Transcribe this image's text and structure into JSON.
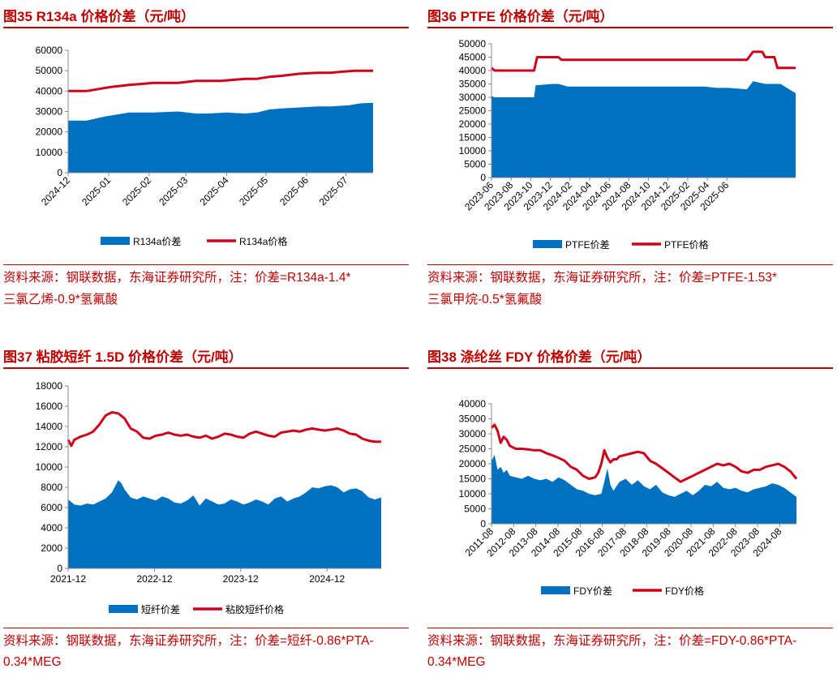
{
  "colors": {
    "title": "#c00000",
    "area": "#0070c0",
    "line": "#d0021b"
  },
  "panels": [
    {
      "title": "图35 R134a 价格价差（元/吨）",
      "source_line1": "资料来源：钢联数据，东海证券研究所，注：价差=R134a-1.4*",
      "source_line2": "三氯乙烯-0.9*氢氟酸",
      "chart_data": {
        "type": "area+line",
        "ylim": [
          0,
          60000
        ],
        "yticks": [
          0,
          10000,
          20000,
          30000,
          40000,
          50000,
          60000
        ],
        "xlim": [
          0,
          1
        ],
        "xticks": [
          {
            "label": "2024-12",
            "pos": 0
          },
          {
            "label": "2025-01",
            "pos": 0.133
          },
          {
            "label": "2025-02",
            "pos": 0.266
          },
          {
            "label": "2025-03",
            "pos": 0.386
          },
          {
            "label": "2025-04",
            "pos": 0.52
          },
          {
            "label": "2025-05",
            "pos": 0.649
          },
          {
            "label": "2025-06",
            "pos": 0.782
          },
          {
            "label": "2025-07",
            "pos": 0.911
          }
        ],
        "series": [
          {
            "name": "R134a价差",
            "kind": "area",
            "x": [
              0,
              0.06,
              0.12,
              0.2,
              0.28,
              0.36,
              0.42,
              0.46,
              0.52,
              0.58,
              0.62,
              0.66,
              0.7,
              0.76,
              0.82,
              0.86,
              0.92,
              0.96,
              1
            ],
            "y": [
              25500,
              25500,
              27500,
              29500,
              29500,
              30000,
              29000,
              29000,
              29500,
              29000,
              29500,
              31000,
              31500,
              32000,
              32500,
              32500,
              33000,
              34000,
              34200
            ]
          },
          {
            "name": "R134a价格",
            "kind": "line",
            "x": [
              0,
              0.06,
              0.1,
              0.14,
              0.2,
              0.28,
              0.32,
              0.36,
              0.42,
              0.46,
              0.5,
              0.58,
              0.62,
              0.66,
              0.7,
              0.76,
              0.82,
              0.86,
              0.9,
              0.94,
              1
            ],
            "y": [
              40000,
              40000,
              41000,
              42000,
              43000,
              44000,
              44000,
              44000,
              45000,
              45000,
              45000,
              46000,
              46000,
              47000,
              47500,
              48500,
              49000,
              49000,
              49500,
              50000,
              50000
            ]
          }
        ],
        "legend": [
          "R134a价差",
          "R134a价格"
        ]
      }
    },
    {
      "title": "图36 PTFE 价格价差（元/吨）",
      "source_line1": "资料来源：钢联数据，东海证券研究所，注：价差=PTFE-1.53*",
      "source_line2": "三氯甲烷-0.5*氢氟酸",
      "chart_data": {
        "type": "area+line",
        "ylim": [
          0,
          50000
        ],
        "yticks": [
          0,
          5000,
          10000,
          15000,
          20000,
          25000,
          30000,
          35000,
          40000,
          45000,
          50000
        ],
        "xlim": [
          0,
          1
        ],
        "xticks": [
          {
            "label": "2023-06",
            "pos": 0
          },
          {
            "label": "2023-08",
            "pos": 0.0645
          },
          {
            "label": "2023-10",
            "pos": 0.129
          },
          {
            "label": "2023-12",
            "pos": 0.1935
          },
          {
            "label": "2024-02",
            "pos": 0.258
          },
          {
            "label": "2024-04",
            "pos": 0.3225
          },
          {
            "label": "2024-06",
            "pos": 0.387
          },
          {
            "label": "2024-08",
            "pos": 0.4515
          },
          {
            "label": "2024-10",
            "pos": 0.516
          },
          {
            "label": "2024-12",
            "pos": 0.5805
          },
          {
            "label": "2025-02",
            "pos": 0.645
          },
          {
            "label": "2025-04",
            "pos": 0.7095
          },
          {
            "label": "2025-06",
            "pos": 0.774
          }
        ],
        "series": [
          {
            "name": "PTFE价差",
            "kind": "area",
            "x": [
              0,
              0.01,
              0.05,
              0.1,
              0.14,
              0.145,
              0.2,
              0.22,
              0.25,
              0.3,
              0.4,
              0.5,
              0.6,
              0.7,
              0.74,
              0.78,
              0.84,
              0.86,
              0.9,
              0.95,
              1
            ],
            "y": [
              30500,
              30000,
              30000,
              30000,
              30000,
              34500,
              35000,
              35000,
              34000,
              34000,
              34000,
              34000,
              34000,
              34000,
              33500,
              33500,
              33000,
              36000,
              35000,
              35000,
              31500
            ]
          },
          {
            "name": "PTFE价格",
            "kind": "line",
            "x": [
              0,
              0.01,
              0.05,
              0.1,
              0.14,
              0.15,
              0.2,
              0.22,
              0.23,
              0.4,
              0.6,
              0.8,
              0.84,
              0.86,
              0.89,
              0.9,
              0.93,
              0.94,
              1
            ],
            "y": [
              41000,
              40000,
              40000,
              40000,
              40000,
              45000,
              45000,
              45000,
              44000,
              44000,
              44000,
              44000,
              44000,
              47000,
              47000,
              45000,
              45000,
              41000,
              41000
            ]
          }
        ],
        "legend": [
          "PTFE价差",
          "PTFE价格"
        ]
      }
    },
    {
      "title": "图37 粘胶短纤 1.5D 价格价差（元/吨）",
      "source_line1": "资料来源：钢联数据，东海证券研究所，注：价差=短纤-0.86*PTA-",
      "source_line2": "0.34*MEG",
      "chart_data": {
        "type": "area+line",
        "ylim": [
          0,
          18000
        ],
        "yticks": [
          0,
          2000,
          4000,
          6000,
          8000,
          10000,
          12000,
          14000,
          16000,
          18000
        ],
        "xlim": [
          0,
          1
        ],
        "xticks": [
          {
            "label": "2021-12",
            "pos": 0
          },
          {
            "label": "2022-12",
            "pos": 0.276
          },
          {
            "label": "2023-12",
            "pos": 0.551
          },
          {
            "label": "2024-12",
            "pos": 0.827
          }
        ],
        "series": [
          {
            "name": "短纤价差",
            "kind": "area",
            "x": [
              0,
              0.02,
              0.04,
              0.06,
              0.08,
              0.1,
              0.12,
              0.14,
              0.16,
              0.17,
              0.18,
              0.2,
              0.22,
              0.24,
              0.26,
              0.28,
              0.3,
              0.32,
              0.34,
              0.36,
              0.38,
              0.4,
              0.42,
              0.44,
              0.46,
              0.48,
              0.5,
              0.52,
              0.54,
              0.56,
              0.58,
              0.6,
              0.62,
              0.64,
              0.66,
              0.68,
              0.7,
              0.72,
              0.74,
              0.76,
              0.78,
              0.8,
              0.82,
              0.84,
              0.86,
              0.88,
              0.9,
              0.92,
              0.94,
              0.96,
              0.98,
              1
            ],
            "y": [
              6800,
              6300,
              6200,
              6400,
              6300,
              6600,
              6900,
              7500,
              8700,
              8400,
              7800,
              7000,
              6800,
              7100,
              6900,
              6700,
              7100,
              6900,
              6500,
              6400,
              6700,
              7200,
              6200,
              6900,
              6600,
              6300,
              6400,
              6800,
              6600,
              6300,
              6500,
              6800,
              6600,
              6300,
              6900,
              7100,
              6600,
              6900,
              7100,
              7500,
              8000,
              7900,
              8100,
              8200,
              8000,
              7500,
              7800,
              7900,
              7600,
              7000,
              6800,
              7000
            ]
          },
          {
            "name": "粘胶短纤价格",
            "kind": "line",
            "x": [
              0,
              0.01,
              0.02,
              0.04,
              0.06,
              0.08,
              0.1,
              0.12,
              0.14,
              0.16,
              0.18,
              0.2,
              0.22,
              0.24,
              0.26,
              0.28,
              0.3,
              0.32,
              0.34,
              0.36,
              0.38,
              0.4,
              0.42,
              0.44,
              0.46,
              0.48,
              0.5,
              0.52,
              0.54,
              0.56,
              0.58,
              0.6,
              0.62,
              0.64,
              0.66,
              0.68,
              0.7,
              0.72,
              0.74,
              0.76,
              0.78,
              0.8,
              0.82,
              0.84,
              0.86,
              0.88,
              0.9,
              0.92,
              0.94,
              0.96,
              0.98,
              1
            ],
            "y": [
              12700,
              12100,
              12700,
              13000,
              13200,
              13500,
              14200,
              15100,
              15400,
              15300,
              14800,
              13800,
              13500,
              12900,
              12800,
              13100,
              13200,
              13400,
              13200,
              13100,
              13200,
              13000,
              12900,
              13100,
              12800,
              13000,
              13300,
              13200,
              13000,
              12900,
              13300,
              13500,
              13300,
              13100,
              13000,
              13400,
              13500,
              13600,
              13500,
              13700,
              13800,
              13700,
              13600,
              13700,
              13800,
              13600,
              13300,
              13200,
              12800,
              12600,
              12500,
              12500
            ]
          }
        ],
        "legend": [
          "短纤价差",
          "粘胶短纤价格"
        ]
      }
    },
    {
      "title": "图38 涤纶丝 FDY 价格价差（元/吨）",
      "source_line1": "资料来源：钢联数据，东海证券研究所，注：价差=FDY-0.86*PTA-",
      "source_line2": "0.34*MEG",
      "chart_data": {
        "type": "area+line",
        "ylim": [
          0,
          40000
        ],
        "yticks": [
          0,
          5000,
          10000,
          15000,
          20000,
          25000,
          30000,
          35000,
          40000
        ],
        "xlim": [
          0,
          1
        ],
        "xticks": [
          {
            "label": "2011-08",
            "pos": 0
          },
          {
            "label": "2012-08",
            "pos": 0.0727
          },
          {
            "label": "2013-08",
            "pos": 0.1454
          },
          {
            "label": "2014-08",
            "pos": 0.2181
          },
          {
            "label": "2015-08",
            "pos": 0.2908
          },
          {
            "label": "2016-08",
            "pos": 0.3635
          },
          {
            "label": "2017-08",
            "pos": 0.4362
          },
          {
            "label": "2018-08",
            "pos": 0.5089
          },
          {
            "label": "2019-08",
            "pos": 0.5816
          },
          {
            "label": "2020-08",
            "pos": 0.6543
          },
          {
            "label": "2021-08",
            "pos": 0.727
          },
          {
            "label": "2022-08",
            "pos": 0.7997
          },
          {
            "label": "2023-08",
            "pos": 0.8724
          },
          {
            "label": "2024-08",
            "pos": 0.9451
          }
        ],
        "series": [
          {
            "name": "FDY价差",
            "kind": "area",
            "x": [
              0,
              0.01,
              0.02,
              0.03,
              0.04,
              0.05,
              0.06,
              0.08,
              0.1,
              0.12,
              0.14,
              0.16,
              0.18,
              0.2,
              0.22,
              0.24,
              0.26,
              0.28,
              0.3,
              0.32,
              0.34,
              0.36,
              0.37,
              0.38,
              0.39,
              0.4,
              0.42,
              0.44,
              0.46,
              0.48,
              0.5,
              0.52,
              0.54,
              0.56,
              0.58,
              0.6,
              0.62,
              0.64,
              0.66,
              0.68,
              0.7,
              0.72,
              0.74,
              0.76,
              0.78,
              0.8,
              0.82,
              0.84,
              0.86,
              0.88,
              0.9,
              0.92,
              0.94,
              0.96,
              0.98,
              1
            ],
            "y": [
              21000,
              23000,
              18000,
              19000,
              17000,
              18000,
              16000,
              15500,
              15000,
              16000,
              15000,
              14500,
              15000,
              14000,
              15500,
              14500,
              13000,
              11500,
              11000,
              10000,
              9500,
              10000,
              14000,
              18500,
              13000,
              11000,
              14000,
              15000,
              13000,
              14500,
              12500,
              11500,
              13000,
              10500,
              9500,
              9000,
              10000,
              11000,
              9500,
              11000,
              13000,
              12500,
              14000,
              12000,
              11500,
              12000,
              11000,
              10500,
              11500,
              12000,
              12500,
              13500,
              13000,
              12000,
              10500,
              9000
            ]
          },
          {
            "name": "FDY价格",
            "kind": "line",
            "x": [
              0,
              0.01,
              0.02,
              0.03,
              0.04,
              0.05,
              0.06,
              0.07,
              0.08,
              0.1,
              0.12,
              0.14,
              0.16,
              0.18,
              0.2,
              0.22,
              0.24,
              0.26,
              0.28,
              0.3,
              0.32,
              0.34,
              0.35,
              0.36,
              0.37,
              0.38,
              0.39,
              0.4,
              0.41,
              0.42,
              0.44,
              0.46,
              0.48,
              0.5,
              0.52,
              0.54,
              0.56,
              0.58,
              0.6,
              0.62,
              0.64,
              0.66,
              0.68,
              0.7,
              0.72,
              0.74,
              0.76,
              0.78,
              0.8,
              0.82,
              0.84,
              0.86,
              0.88,
              0.9,
              0.92,
              0.94,
              0.96,
              0.98,
              1
            ],
            "y": [
              32000,
              33000,
              31000,
              27000,
              29000,
              28000,
              26000,
              25500,
              25000,
              25000,
              24800,
              24500,
              24500,
              23500,
              22800,
              22000,
              21000,
              19000,
              18000,
              16000,
              15000,
              15500,
              17000,
              20000,
              24500,
              22000,
              20500,
              21500,
              21500,
              22500,
              23000,
              23500,
              24000,
              23500,
              21000,
              20000,
              18500,
              17000,
              15500,
              14000,
              15000,
              16000,
              17000,
              18000,
              19000,
              20000,
              19500,
              20000,
              19000,
              17500,
              17000,
              18000,
              18000,
              19000,
              19500,
              20000,
              19000,
              17500,
              15000
            ]
          }
        ],
        "legend": [
          "FDY价差",
          "FDY价格"
        ]
      }
    }
  ]
}
